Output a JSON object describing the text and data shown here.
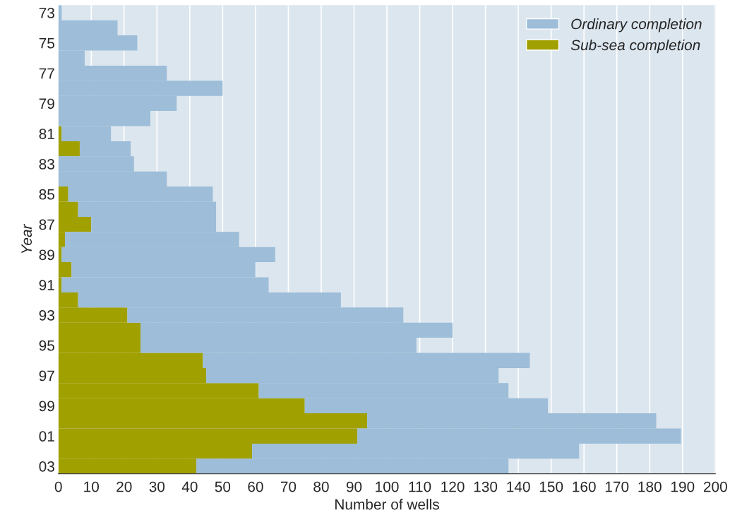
{
  "chart_data": {
    "type": "bar",
    "orientation": "horizontal",
    "stacked": true,
    "xlabel": "Number of wells",
    "ylabel": "Year",
    "categories": [
      "73",
      null,
      "75",
      null,
      "77",
      null,
      "79",
      null,
      "81",
      null,
      "83",
      null,
      "85",
      null,
      "87",
      null,
      "89",
      null,
      "91",
      null,
      "93",
      null,
      "95",
      null,
      "97",
      null,
      "99",
      null,
      "01",
      null,
      "03"
    ],
    "series": [
      {
        "name": "Sub-sea completion",
        "color": "#a0a000",
        "values": [
          0,
          0,
          0,
          0,
          0,
          0,
          0,
          0,
          1,
          6.5,
          0,
          0,
          3,
          6,
          10,
          2,
          1,
          4,
          1,
          6,
          21,
          25,
          25,
          44,
          45,
          61,
          75,
          94,
          91,
          59,
          42
        ]
      },
      {
        "name": "Ordinary completion",
        "color": "#9dbdd8",
        "values": [
          1,
          18,
          24,
          8,
          33,
          50,
          36,
          28,
          15,
          15.5,
          23,
          33,
          44,
          42,
          38,
          53,
          65,
          56,
          63,
          80,
          84,
          95,
          84,
          99.5,
          89,
          76,
          74,
          88,
          98.5,
          99.5,
          95
        ]
      }
    ],
    "xlim": [
      0,
      200
    ],
    "xticks": [
      0,
      10,
      20,
      30,
      40,
      50,
      60,
      70,
      80,
      90,
      100,
      110,
      120,
      130,
      140,
      150,
      160,
      170,
      180,
      190,
      200
    ],
    "grid": "x",
    "legend": "top right"
  }
}
